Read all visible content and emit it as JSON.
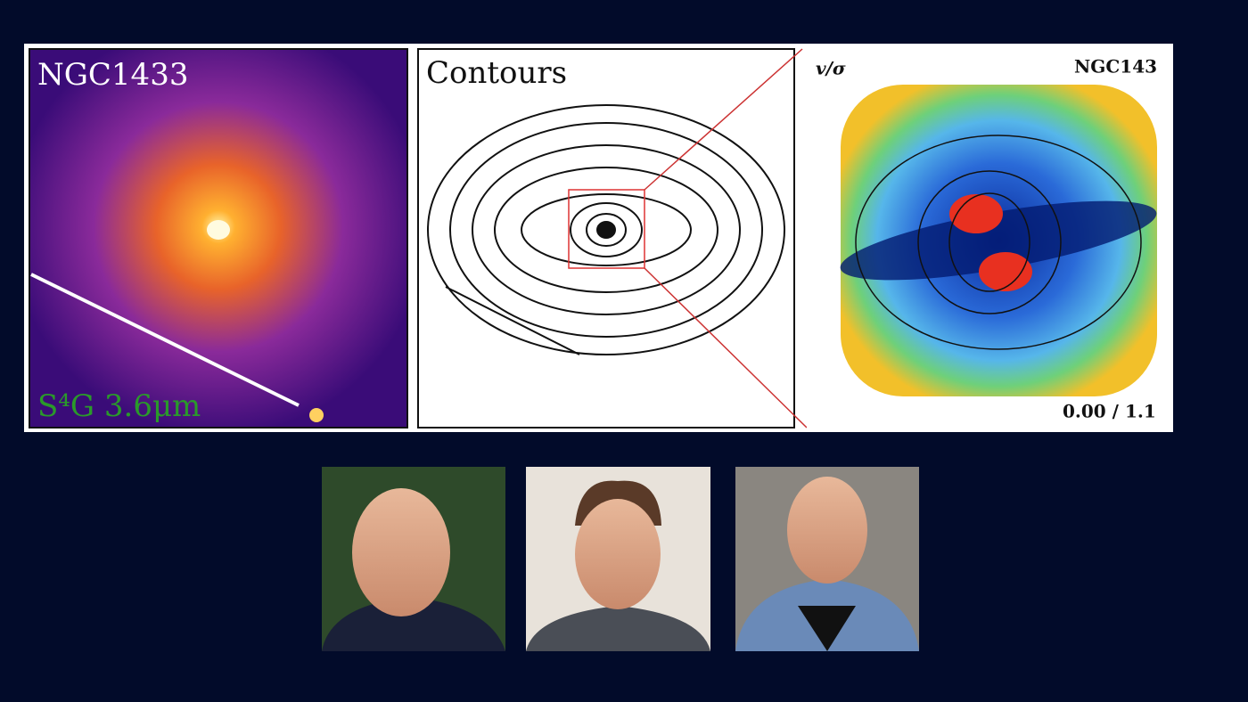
{
  "panels": [
    {
      "label": "NGC1433",
      "caption": "S⁴G 3.6μm"
    },
    {
      "label": "Contours"
    },
    {
      "label": "v/σ",
      "caption": "NGC143",
      "range_label": "0.00 / 1.1"
    }
  ]
}
